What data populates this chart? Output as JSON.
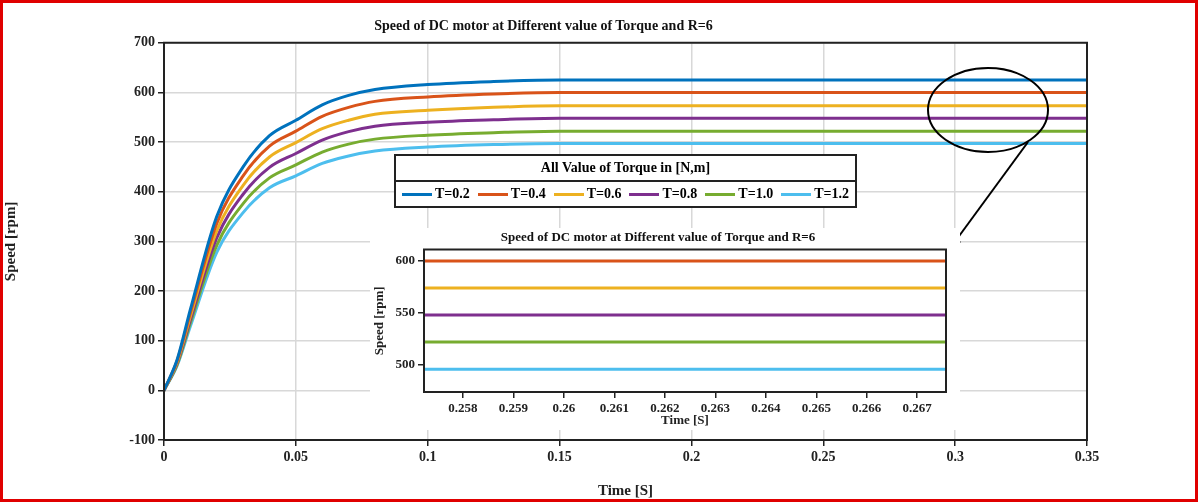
{
  "chart_data": [
    {
      "type": "line",
      "title": "Speed of DC motor at Different value of Torque and R=6",
      "xlabel": "Time [S]",
      "ylabel": "Speed [rpm]",
      "legend_title": "All Value of Torque in [N,m]",
      "legend": "center",
      "grid": true,
      "marker": "none",
      "line_style": "solid",
      "xlim": [
        0,
        0.35
      ],
      "xticks": [
        0,
        0.05,
        0.1,
        0.15,
        0.2,
        0.25,
        0.3,
        0.35
      ],
      "ylim": [
        -100,
        700
      ],
      "yticks": [
        -100,
        0,
        100,
        200,
        300,
        400,
        500,
        600,
        700
      ],
      "x": [
        0,
        0.005,
        0.01,
        0.02,
        0.03,
        0.04,
        0.05,
        0.06,
        0.07,
        0.08,
        0.1,
        0.125,
        0.15,
        0.2,
        0.25,
        0.3,
        0.35
      ],
      "series": [
        {
          "name": "T=0.2",
          "color": "#0072bd",
          "values": [
            0,
            62,
            163,
            350,
            450,
            513,
            544,
            575,
            594,
            606,
            616,
            622,
            625,
            625,
            625,
            625,
            625
          ]
        },
        {
          "name": "T=0.4",
          "color": "#d95319",
          "values": [
            0,
            60,
            156,
            336,
            432,
            492,
            522,
            552,
            570,
            582,
            591,
            597,
            600,
            600,
            600,
            600,
            600
          ]
        },
        {
          "name": "T=0.6",
          "color": "#edb120",
          "values": [
            0,
            57,
            149,
            321,
            413,
            470,
            499,
            527,
            544,
            556,
            564,
            570,
            573,
            573,
            573,
            573,
            573
          ]
        },
        {
          "name": "T=0.8",
          "color": "#7e2f8e",
          "values": [
            0,
            55,
            142,
            307,
            395,
            449,
            477,
            504,
            521,
            532,
            540,
            545,
            548,
            548,
            548,
            548,
            548
          ]
        },
        {
          "name": "T=1.0",
          "color": "#77ac30",
          "values": [
            0,
            52,
            136,
            292,
            376,
            428,
            454,
            480,
            496,
            506,
            514,
            519,
            522,
            522,
            522,
            522,
            522
          ]
        },
        {
          "name": "T=1.2",
          "color": "#4dbeee",
          "values": [
            0,
            50,
            129,
            278,
            358,
            408,
            432,
            457,
            472,
            482,
            490,
            495,
            497,
            497,
            497,
            497,
            497
          ]
        }
      ]
    },
    {
      "type": "line",
      "title": "Speed of DC motor at Different value of Torque and R=6",
      "xlabel": "Time [S]",
      "ylabel": "Speed [rpm]",
      "grid": false,
      "marker": "none",
      "line_style": "solid",
      "xlim": [
        0.25723,
        0.26757
      ],
      "xticks": [
        0.258,
        0.259,
        0.26,
        0.261,
        0.262,
        0.263,
        0.264,
        0.265,
        0.266,
        0.267
      ],
      "ylim": [
        474,
        611
      ],
      "yticks": [
        500,
        550,
        600
      ],
      "x": [
        0.25723,
        0.26757
      ],
      "series": [
        {
          "color": "#d95319",
          "values": [
            600,
            600
          ]
        },
        {
          "color": "#edb120",
          "values": [
            574,
            574
          ]
        },
        {
          "color": "#7e2f8e",
          "values": [
            548,
            548
          ]
        },
        {
          "color": "#77ac30",
          "values": [
            522,
            522
          ]
        },
        {
          "color": "#4dbeee",
          "values": [
            496,
            496
          ]
        }
      ]
    }
  ]
}
